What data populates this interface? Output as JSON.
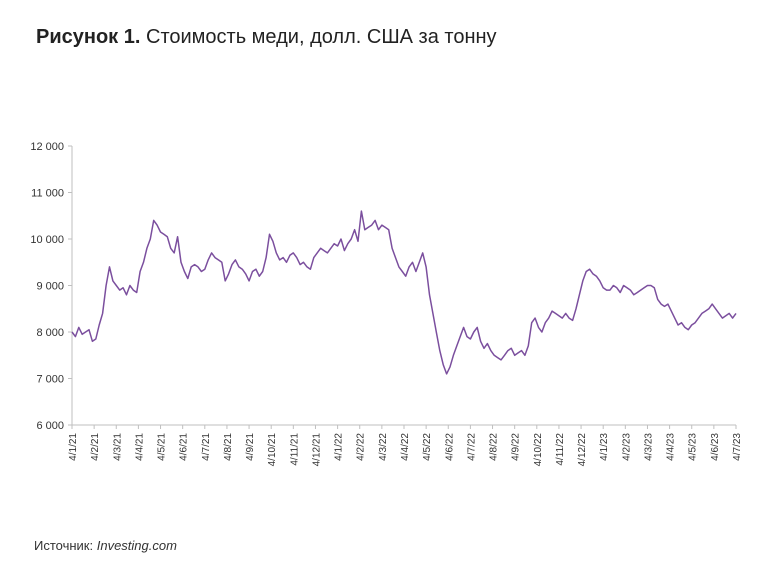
{
  "title": {
    "figure_label": "Рисунок 1.",
    "text": "Стоимость меди, долл. США за тонну"
  },
  "source": {
    "label": "Источник:",
    "value": "Investing.com"
  },
  "chart_data": {
    "type": "line",
    "title": "",
    "xlabel": "",
    "ylabel": "",
    "ylim": [
      6000,
      12000
    ],
    "yticks": [
      6000,
      7000,
      8000,
      9000,
      10000,
      11000,
      12000
    ],
    "ytick_labels": [
      "6 000",
      "7 000",
      "8 000",
      "9 000",
      "10 000",
      "11 000",
      "12 000"
    ],
    "xtick_labels": [
      "4/1/21",
      "4/2/21",
      "4/3/21",
      "4/4/21",
      "4/5/21",
      "4/6/21",
      "4/7/21",
      "4/8/21",
      "4/9/21",
      "4/10/21",
      "4/11/21",
      "4/12/21",
      "4/1/22",
      "4/2/22",
      "4/3/22",
      "4/4/22",
      "4/5/22",
      "4/6/22",
      "4/7/22",
      "4/8/22",
      "4/9/22",
      "4/10/22",
      "4/11/22",
      "4/12/22",
      "4/1/23",
      "4/2/23",
      "4/3/23",
      "4/4/23",
      "4/5/23",
      "4/6/23",
      "4/7/23"
    ],
    "grid": false,
    "line_color": "#7b4f9e",
    "series": [
      {
        "values": [
          8000,
          7900,
          8100,
          7950,
          8000,
          8050,
          7800,
          7850,
          8150,
          8400,
          9000,
          9400,
          9100,
          9000,
          8900,
          8950,
          8800,
          9000,
          8900,
          8850,
          9300,
          9500,
          9800,
          10000,
          10400,
          10300,
          10150,
          10100,
          10050,
          9800,
          9700,
          10050,
          9500,
          9300,
          9150,
          9400,
          9450,
          9400,
          9300,
          9350,
          9550,
          9700,
          9600,
          9550,
          9500,
          9100,
          9250,
          9450,
          9550,
          9400,
          9350,
          9250,
          9100,
          9300,
          9350,
          9200,
          9300,
          9600,
          10100,
          9950,
          9700,
          9550,
          9600,
          9500,
          9650,
          9700,
          9600,
          9450,
          9500,
          9400,
          9350,
          9600,
          9700,
          9800,
          9750,
          9700,
          9800,
          9900,
          9850,
          10000,
          9750,
          9900,
          10000,
          10200,
          9950,
          10600,
          10200,
          10250,
          10300,
          10400,
          10200,
          10300,
          10250,
          10200,
          9800,
          9600,
          9400,
          9300,
          9200,
          9400,
          9500,
          9300,
          9500,
          9700,
          9400,
          8800,
          8400,
          8000,
          7600,
          7300,
          7100,
          7250,
          7500,
          7700,
          7900,
          8100,
          7900,
          7850,
          8000,
          8100,
          7800,
          7650,
          7750,
          7600,
          7500,
          7450,
          7400,
          7500,
          7600,
          7650,
          7500,
          7550,
          7600,
          7500,
          7700,
          8200,
          8300,
          8100,
          8000,
          8200,
          8300,
          8450,
          8400,
          8350,
          8300,
          8400,
          8300,
          8250,
          8500,
          8800,
          9100,
          9300,
          9350,
          9250,
          9200,
          9100,
          8950,
          8900,
          8900,
          9000,
          8950,
          8850,
          9000,
          8950,
          8900,
          8800,
          8850,
          8900,
          8950,
          9000,
          9000,
          8950,
          8700,
          8600,
          8550,
          8600,
          8450,
          8300,
          8150,
          8200,
          8100,
          8050,
          8150,
          8200,
          8300,
          8400,
          8450,
          8500,
          8600,
          8500,
          8400,
          8300,
          8350,
          8400,
          8300,
          8400
        ]
      }
    ]
  }
}
